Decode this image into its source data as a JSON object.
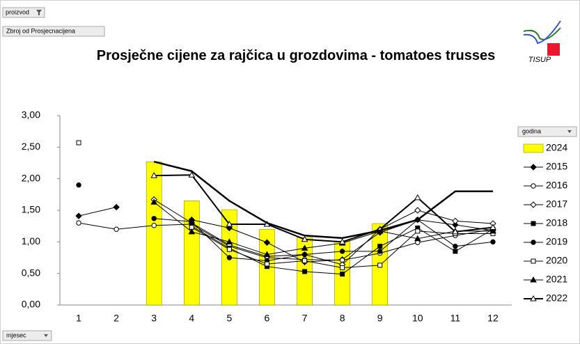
{
  "header": {
    "filter_button": "proizvod",
    "value_button": "Zbroj od Prosjecnacijena",
    "logo_text": "TISUP"
  },
  "chart_data": {
    "type": "line",
    "title": "Prosječne cijene za rajčica  u grozdovima - tomatoes trusses",
    "legend_title": "godina",
    "x_button": "mjesec",
    "legend": "right",
    "grid": false,
    "categories": [
      "1",
      "2",
      "3",
      "4",
      "5",
      "6",
      "7",
      "8",
      "9",
      "10",
      "11",
      "12"
    ],
    "ylim": [
      0,
      3
    ],
    "yticks": [
      {
        "value": 0,
        "label": "0,00"
      },
      {
        "value": 0.5,
        "label": "0,50"
      },
      {
        "value": 1,
        "label": "1,00"
      },
      {
        "value": 1.5,
        "label": "1,50"
      },
      {
        "value": 2,
        "label": "2,00"
      },
      {
        "value": 2.5,
        "label": "2,50"
      },
      {
        "value": 3,
        "label": "3,00"
      }
    ],
    "series": [
      {
        "name": "2024",
        "kind": "bar",
        "color": "#ffff00",
        "values": [
          null,
          null,
          2.27,
          1.65,
          1.51,
          1.2,
          1.07,
          1.01,
          1.29,
          null,
          null,
          null
        ]
      },
      {
        "name": "2015",
        "color": "#000000",
        "marker": "diamond",
        "marker_fill": "#000000",
        "values": [
          1.41,
          1.55,
          null,
          1.35,
          1.22,
          0.99,
          0.68,
          0.72,
          1.15,
          1.35,
          1.27,
          1.18
        ]
      },
      {
        "name": "2016",
        "color": "#000000",
        "marker": "circle",
        "marker_fill": "#ffffff",
        "values": [
          1.3,
          1.2,
          1.26,
          1.28,
          0.93,
          0.75,
          0.72,
          0.71,
          0.82,
          0.99,
          1.1,
          1.2
        ]
      },
      {
        "name": "2017",
        "color": "#000000",
        "marker": "diamond",
        "marker_fill": "#ffffff",
        "values": [
          null,
          null,
          1.67,
          1.3,
          0.95,
          0.77,
          0.8,
          0.64,
          1.2,
          1.5,
          1.33,
          1.29
        ]
      },
      {
        "name": "2018",
        "color": "#000000",
        "marker": "square",
        "marker_fill": "#000000",
        "values": [
          null,
          null,
          null,
          1.25,
          0.9,
          0.61,
          0.53,
          0.49,
          0.93,
          1.22,
          0.85,
          1.2
        ]
      },
      {
        "name": "2019",
        "color": "#000000",
        "marker": "circle",
        "marker_fill": "#000000",
        "values": [
          1.9,
          null,
          1.37,
          1.32,
          0.75,
          0.7,
          0.8,
          0.85,
          0.85,
          1.35,
          0.93,
          1.0
        ]
      },
      {
        "name": "2020",
        "color": "#000000",
        "marker": "square",
        "marker_fill": "#ffffff",
        "values": [
          2.57,
          null,
          null,
          1.23,
          0.88,
          0.65,
          0.7,
          0.59,
          0.63,
          1.17,
          1.13,
          1.13
        ]
      },
      {
        "name": "2021",
        "color": "#000000",
        "marker": "triangle",
        "marker_fill": "#000000",
        "values": [
          null,
          null,
          1.63,
          1.16,
          1.0,
          0.8,
          0.9,
          0.98,
          1.17,
          1.05,
          1.17,
          1.17
        ]
      },
      {
        "name": "2022",
        "color": "#000000",
        "marker": "triangle",
        "marker_fill": "#ffffff",
        "width": 2,
        "values": [
          null,
          null,
          2.05,
          2.06,
          1.28,
          1.28,
          1.04,
          1.0,
          1.2,
          1.7,
          1.16,
          1.23
        ]
      },
      {
        "color": "#000000",
        "marker": "none",
        "width": 2.5,
        "values": [
          null,
          null,
          2.27,
          2.12,
          1.65,
          1.3,
          1.1,
          1.06,
          1.18,
          1.35,
          1.8,
          1.8
        ]
      }
    ]
  }
}
